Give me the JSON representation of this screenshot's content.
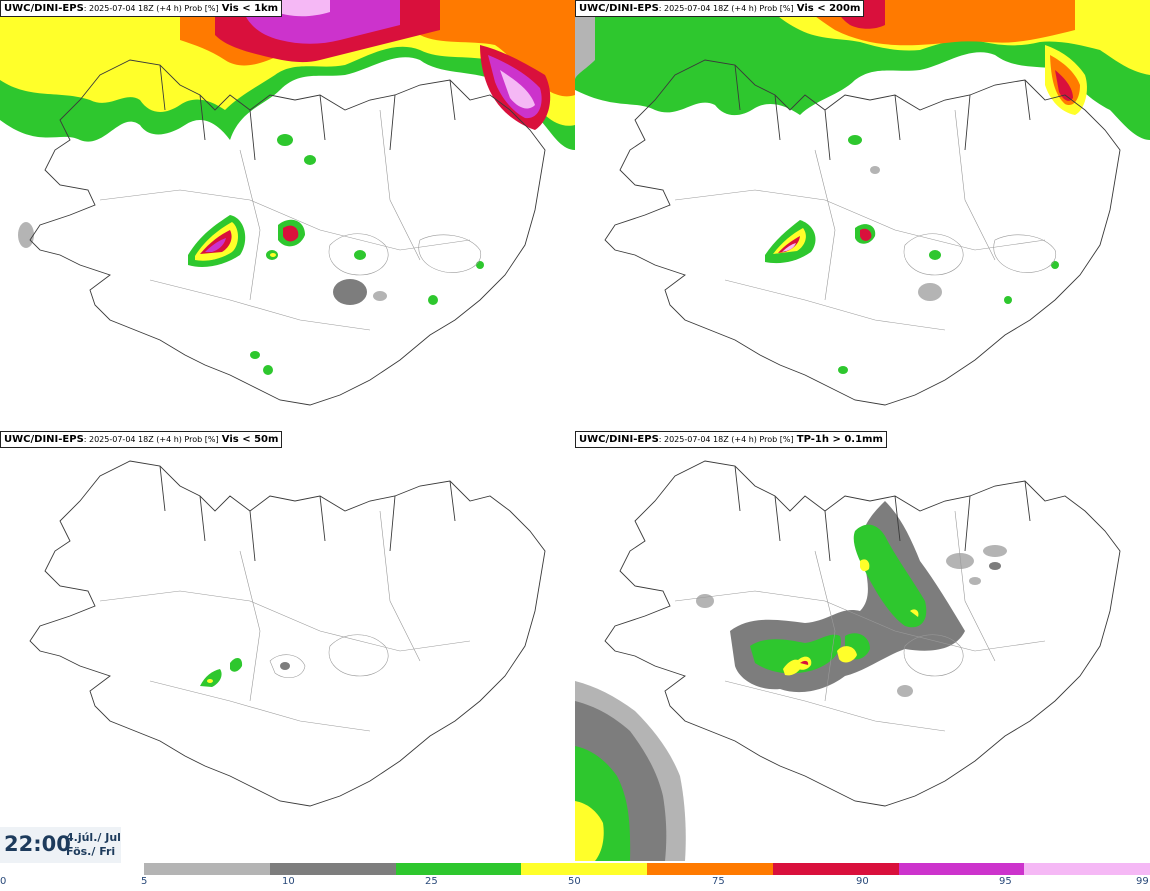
{
  "panels": [
    {
      "source": "UWC/DINI-EPS",
      "meta": ": 2025-07-04 18Z (+4 h) Prob [%]",
      "variable": "Vis < 1km"
    },
    {
      "source": "UWC/DINI-EPS",
      "meta": ": 2025-07-04 18Z (+4 h) Prob [%]",
      "variable": "Vis < 200m"
    },
    {
      "source": "UWC/DINI-EPS",
      "meta": ": 2025-07-04 18Z (+4 h) Prob [%]",
      "variable": "Vis < 50m"
    },
    {
      "source": "UWC/DINI-EPS",
      "meta": ": 2025-07-04 18Z (+4 h) Prob [%]",
      "variable": "TP-1h > 0.1mm"
    }
  ],
  "timestamp": {
    "time": "22:00",
    "date_line1": "4.júl./ Jul",
    "date_line2": "Fös./ Fri"
  },
  "legend": {
    "ticks": [
      "0",
      "5",
      "10",
      "25",
      "50",
      "75",
      "90",
      "95",
      "99"
    ],
    "colors": [
      "#b4b4b4",
      "#7d7d7d",
      "#2ec72e",
      "#ffff2a",
      "#ff7a00",
      "#d9103c",
      "#cc33cc",
      "#f5b8f5"
    ]
  }
}
